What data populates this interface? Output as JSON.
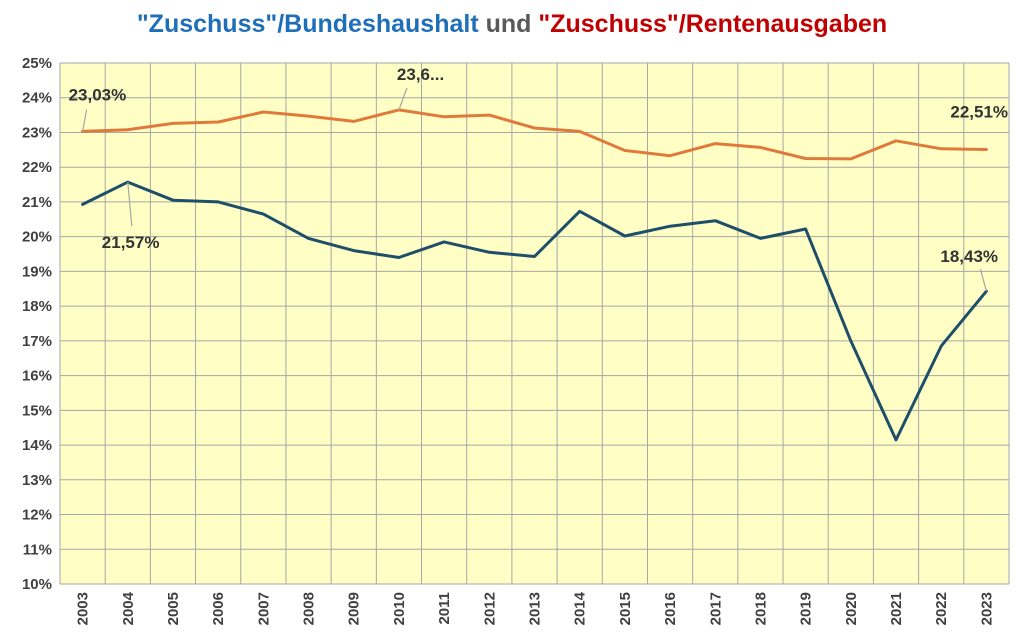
{
  "title": {
    "part1": "\"Zuschuss\"/Bundeshaushalt",
    "part2": " und ",
    "part3": "\"Zuschuss\"/Rentenausgaben"
  },
  "colors": {
    "plot_background": "#ffffc5",
    "grid": "#a6a6a6",
    "series_bundeshaushalt": "#1f4e6b",
    "series_rentenausgaben": "#e07a3c",
    "title_blue": "#1f6fb8",
    "title_gray": "#595959",
    "title_red": "#c00000"
  },
  "chart_data": {
    "type": "line",
    "x": [
      "2003",
      "2004",
      "2005",
      "2006",
      "2007",
      "2008",
      "2009",
      "2010",
      "2011",
      "2012",
      "2013",
      "2014",
      "2015",
      "2016",
      "2017",
      "2018",
      "2019",
      "2020",
      "2021",
      "2022",
      "2023"
    ],
    "ylim": [
      10,
      25
    ],
    "yticks": [
      "10%",
      "11%",
      "12%",
      "13%",
      "14%",
      "15%",
      "16%",
      "17%",
      "18%",
      "19%",
      "20%",
      "21%",
      "22%",
      "23%",
      "24%",
      "25%"
    ],
    "grid": true,
    "series": [
      {
        "key": "rentenausgaben",
        "values": [
          23.03,
          23.08,
          23.26,
          23.3,
          23.59,
          23.47,
          23.32,
          23.65,
          23.45,
          23.5,
          23.13,
          23.03,
          22.48,
          22.33,
          22.68,
          22.57,
          22.25,
          22.24,
          22.76,
          22.53,
          22.51
        ]
      },
      {
        "key": "bundeshaushalt",
        "values": [
          20.93,
          21.57,
          21.05,
          21.0,
          20.65,
          19.95,
          19.6,
          19.4,
          19.85,
          19.55,
          19.43,
          20.73,
          20.02,
          20.3,
          20.46,
          19.95,
          20.22,
          17.0,
          14.15,
          16.85,
          18.43
        ]
      }
    ],
    "data_labels": [
      {
        "text": "23,03%",
        "series": "rentenausgaben",
        "index": 0
      },
      {
        "text": "23,6...",
        "series": "rentenausgaben",
        "index": 7
      },
      {
        "text": "22,51%",
        "series": "rentenausgaben",
        "index": 20
      },
      {
        "text": "21,57%",
        "series": "bundeshaushalt",
        "index": 1
      },
      {
        "text": "18,43%",
        "series": "bundeshaushalt",
        "index": 20
      }
    ]
  }
}
